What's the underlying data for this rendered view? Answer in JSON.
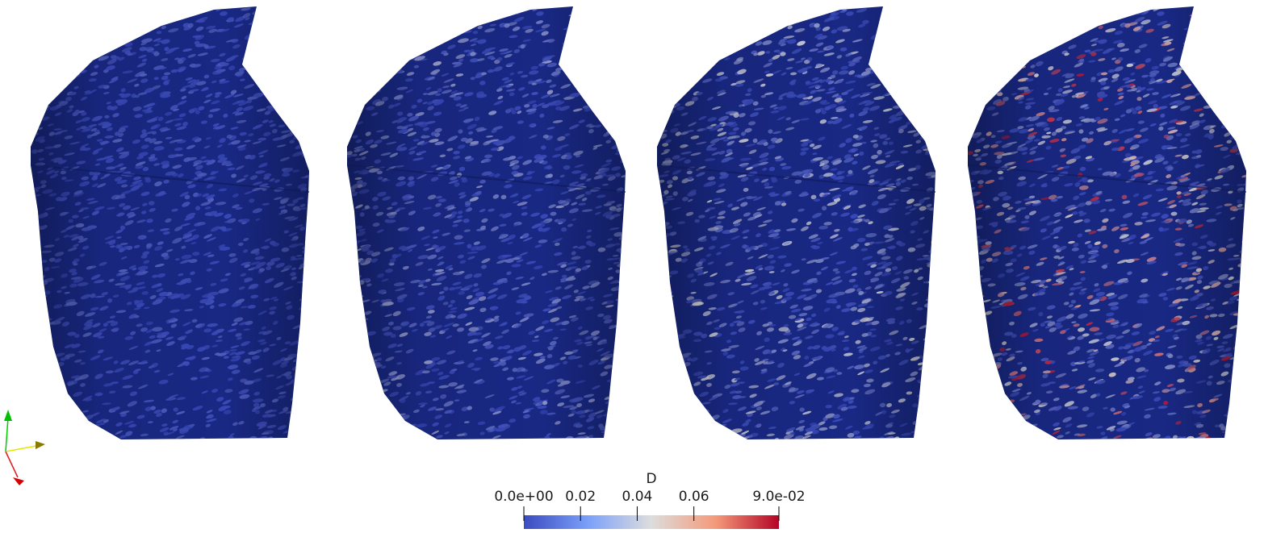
{
  "panels": [
    {
      "name": "render-panel-1",
      "max_value_fraction": 0.1
    },
    {
      "name": "render-panel-2",
      "max_value_fraction": 0.3
    },
    {
      "name": "render-panel-3",
      "max_value_fraction": 0.5
    },
    {
      "name": "render-panel-4",
      "max_value_fraction": 0.95
    }
  ],
  "colorbar": {
    "title": "D",
    "tick_labels": [
      "0.0e+00",
      "0.02",
      "0.04",
      "0.06",
      "9.0e-02"
    ],
    "tick_values": [
      0.0,
      0.02,
      0.04,
      0.06,
      0.09
    ],
    "range": [
      0.0,
      0.09
    ],
    "colormap": "Cool to Warm",
    "colors": [
      "#3b4cc0",
      "#dddddd",
      "#b40426"
    ]
  },
  "orientation_axes": {
    "icon": "xyz-orientation-axes-icon",
    "x_color": "#e31a1c",
    "y_color": "#ffff00",
    "z_color": "#00cc00"
  }
}
